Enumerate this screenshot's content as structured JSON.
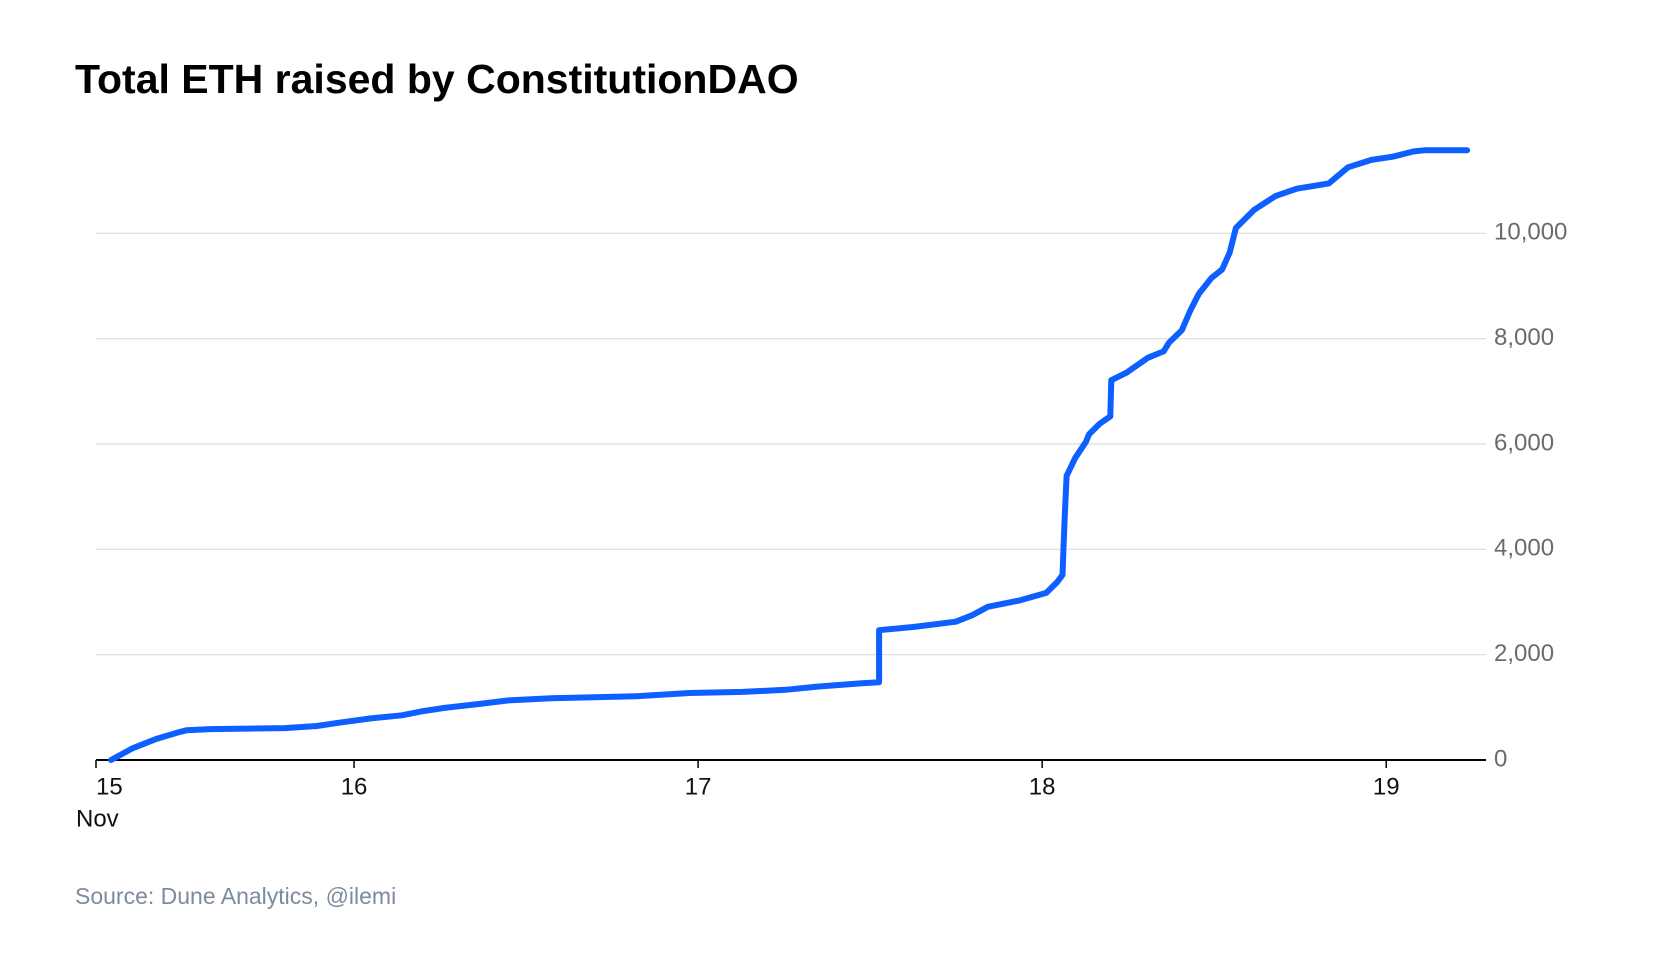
{
  "chart_data": {
    "type": "line",
    "title": "Total ETH raised by ConstitutionDAO",
    "source": "Source: Dune Analytics, @ilemi",
    "x_month_label": "Nov",
    "xlim": [
      15.25,
      19.29
    ],
    "xticks": [
      {
        "value": 15.25,
        "label": "15"
      },
      16,
      17,
      18,
      19
    ],
    "ylim": [
      0,
      12000
    ],
    "yticks": [
      0,
      {
        "value": 2000,
        "label": "2,000"
      },
      {
        "value": 4000,
        "label": "4,000"
      },
      {
        "value": 6000,
        "label": "6,000"
      },
      {
        "value": 8000,
        "label": "8,000"
      },
      {
        "value": 10000,
        "label": "10,000"
      }
    ],
    "grid": true,
    "x": [
      15.294,
      15.356,
      15.427,
      15.489,
      15.514,
      15.582,
      15.799,
      15.892,
      15.954,
      16.046,
      16.139,
      16.201,
      16.263,
      16.372,
      16.449,
      16.573,
      16.82,
      16.975,
      17.13,
      17.254,
      17.347,
      17.471,
      17.526,
      17.526,
      17.625,
      17.749,
      17.796,
      17.842,
      17.935,
      18.012,
      18.043,
      18.059,
      18.065,
      18.071,
      18.096,
      18.127,
      18.136,
      18.167,
      18.198,
      18.201,
      18.245,
      18.307,
      18.353,
      18.368,
      18.406,
      18.43,
      18.455,
      18.492,
      18.523,
      18.545,
      18.563,
      18.616,
      18.678,
      18.74,
      18.833,
      18.889,
      18.957,
      19.019,
      19.08,
      19.111,
      19.235
    ],
    "series": [
      {
        "name": "Total ETH raised",
        "color": "#0d5fff",
        "values": [
          0,
          222,
          404,
          525,
          566,
          586,
          606,
          646,
          707,
          788,
          848,
          929,
          990,
          1071,
          1131,
          1172,
          1212,
          1273,
          1293,
          1333,
          1394,
          1455,
          1475,
          2465,
          2525,
          2626,
          2747,
          2909,
          3030,
          3172,
          3374,
          3515,
          4525,
          5394,
          5737,
          6040,
          6182,
          6384,
          6525,
          7212,
          7354,
          7636,
          7758,
          7919,
          8162,
          8525,
          8848,
          9152,
          9313,
          9636,
          10101,
          10444,
          10707,
          10848,
          10949,
          11253,
          11394,
          11455,
          11556,
          11576,
          11576
        ]
      }
    ]
  }
}
